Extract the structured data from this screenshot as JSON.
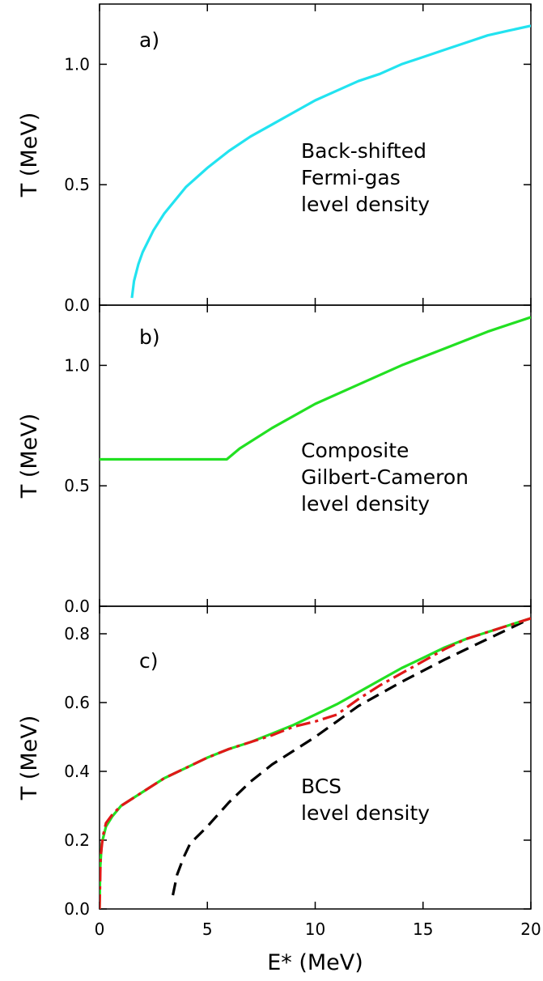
{
  "chart_data": [
    {
      "type": "line",
      "panel_label": "a)",
      "annotation": [
        "Back-shifted",
        "Fermi-gas",
        "level density"
      ],
      "ylabel": "T (MeV)",
      "xlabel": "",
      "xlim": [
        0,
        20
      ],
      "ylim": [
        0,
        1.25
      ],
      "yticks": [
        0.0,
        0.5,
        1.0
      ],
      "ytick_labels": [
        "0.0",
        "0.5",
        "1.0"
      ],
      "xticks": [
        0,
        5,
        10,
        15,
        20
      ],
      "grid": false,
      "series": [
        {
          "color": "#22e3f0",
          "dash": "solid",
          "x": [
            1.5,
            1.6,
            1.8,
            2.0,
            2.5,
            3.0,
            4.0,
            5.0,
            6.0,
            7.0,
            8.0,
            9.0,
            10.0,
            11.0,
            12.0,
            13.0,
            14.0,
            15.0,
            16.0,
            17.0,
            18.0,
            19.0,
            20.0
          ],
          "y": [
            0.03,
            0.1,
            0.17,
            0.22,
            0.31,
            0.38,
            0.49,
            0.57,
            0.64,
            0.7,
            0.75,
            0.8,
            0.85,
            0.89,
            0.93,
            0.96,
            1.0,
            1.03,
            1.06,
            1.09,
            1.12,
            1.14,
            1.16
          ]
        }
      ]
    },
    {
      "type": "line",
      "panel_label": "b)",
      "annotation": [
        "Composite",
        "Gilbert-Cameron",
        "level density"
      ],
      "ylabel": "T (MeV)",
      "xlabel": "",
      "xlim": [
        0,
        20
      ],
      "ylim": [
        0,
        1.25
      ],
      "yticks": [
        0.0,
        0.5,
        1.0
      ],
      "ytick_labels": [
        "0.0",
        "0.5",
        "1.0"
      ],
      "xticks": [
        0,
        5,
        10,
        15,
        20
      ],
      "grid": false,
      "series": [
        {
          "color": "#22e022",
          "dash": "solid",
          "x": [
            0.0,
            5.9,
            6.5,
            8.0,
            10.0,
            12.0,
            14.0,
            16.0,
            18.0,
            20.0
          ],
          "y": [
            0.61,
            0.61,
            0.655,
            0.74,
            0.84,
            0.92,
            1.0,
            1.07,
            1.14,
            1.2
          ]
        }
      ]
    },
    {
      "type": "line",
      "panel_label": "c)",
      "annotation": [
        "BCS",
        "level density"
      ],
      "ylabel": "T (MeV)",
      "xlabel": "E* (MeV)",
      "xlim": [
        0,
        20
      ],
      "ylim": [
        0,
        0.88
      ],
      "yticks": [
        0.0,
        0.2,
        0.4,
        0.6,
        0.8
      ],
      "ytick_labels": [
        "0.0",
        "0.2",
        "0.4",
        "0.6",
        "0.8"
      ],
      "xticks": [
        0,
        5,
        10,
        15,
        20
      ],
      "xtick_labels": [
        "0",
        "5",
        "10",
        "15",
        "20"
      ],
      "grid": false,
      "series": [
        {
          "color": "#000000",
          "dash": "dashed",
          "x": [
            3.4,
            3.6,
            3.9,
            4.2,
            5.0,
            6.0,
            7.0,
            8.0,
            9.0,
            10.0,
            11.0,
            12.0,
            14.0,
            16.0,
            18.0,
            20.0
          ],
          "y": [
            0.04,
            0.1,
            0.15,
            0.19,
            0.24,
            0.31,
            0.37,
            0.42,
            0.46,
            0.5,
            0.545,
            0.59,
            0.66,
            0.725,
            0.785,
            0.845
          ]
        },
        {
          "color": "#22e022",
          "dash": "solid",
          "x": [
            0.0,
            0.03,
            0.1,
            0.3,
            0.6,
            1.0,
            1.5,
            2.0,
            3.0,
            4.0,
            5.0,
            6.0,
            7.0,
            8.0,
            9.0,
            10.0,
            11.0,
            12.0,
            13.0,
            14.0,
            15.0,
            16.0,
            17.0,
            18.0,
            19.0,
            20.0
          ],
          "y": [
            0.0,
            0.12,
            0.19,
            0.24,
            0.27,
            0.3,
            0.32,
            0.34,
            0.38,
            0.41,
            0.44,
            0.465,
            0.485,
            0.51,
            0.535,
            0.565,
            0.595,
            0.63,
            0.665,
            0.7,
            0.73,
            0.76,
            0.785,
            0.805,
            0.825,
            0.845
          ]
        },
        {
          "color": "#e01818",
          "dash": "dashdot",
          "x": [
            0.0,
            0.05,
            0.15,
            0.3,
            0.6,
            1.0,
            1.5,
            2.0,
            3.0,
            4.0,
            5.0,
            6.0,
            7.0,
            8.0,
            9.0,
            10.0,
            11.0,
            12.0,
            13.0,
            14.0,
            15.0,
            16.0,
            17.0,
            18.0,
            19.0,
            20.0
          ],
          "y": [
            0.0,
            0.15,
            0.21,
            0.25,
            0.275,
            0.3,
            0.32,
            0.34,
            0.38,
            0.41,
            0.44,
            0.465,
            0.485,
            0.505,
            0.53,
            0.545,
            0.565,
            0.61,
            0.65,
            0.685,
            0.72,
            0.755,
            0.785,
            0.805,
            0.825,
            0.845
          ]
        }
      ]
    }
  ]
}
